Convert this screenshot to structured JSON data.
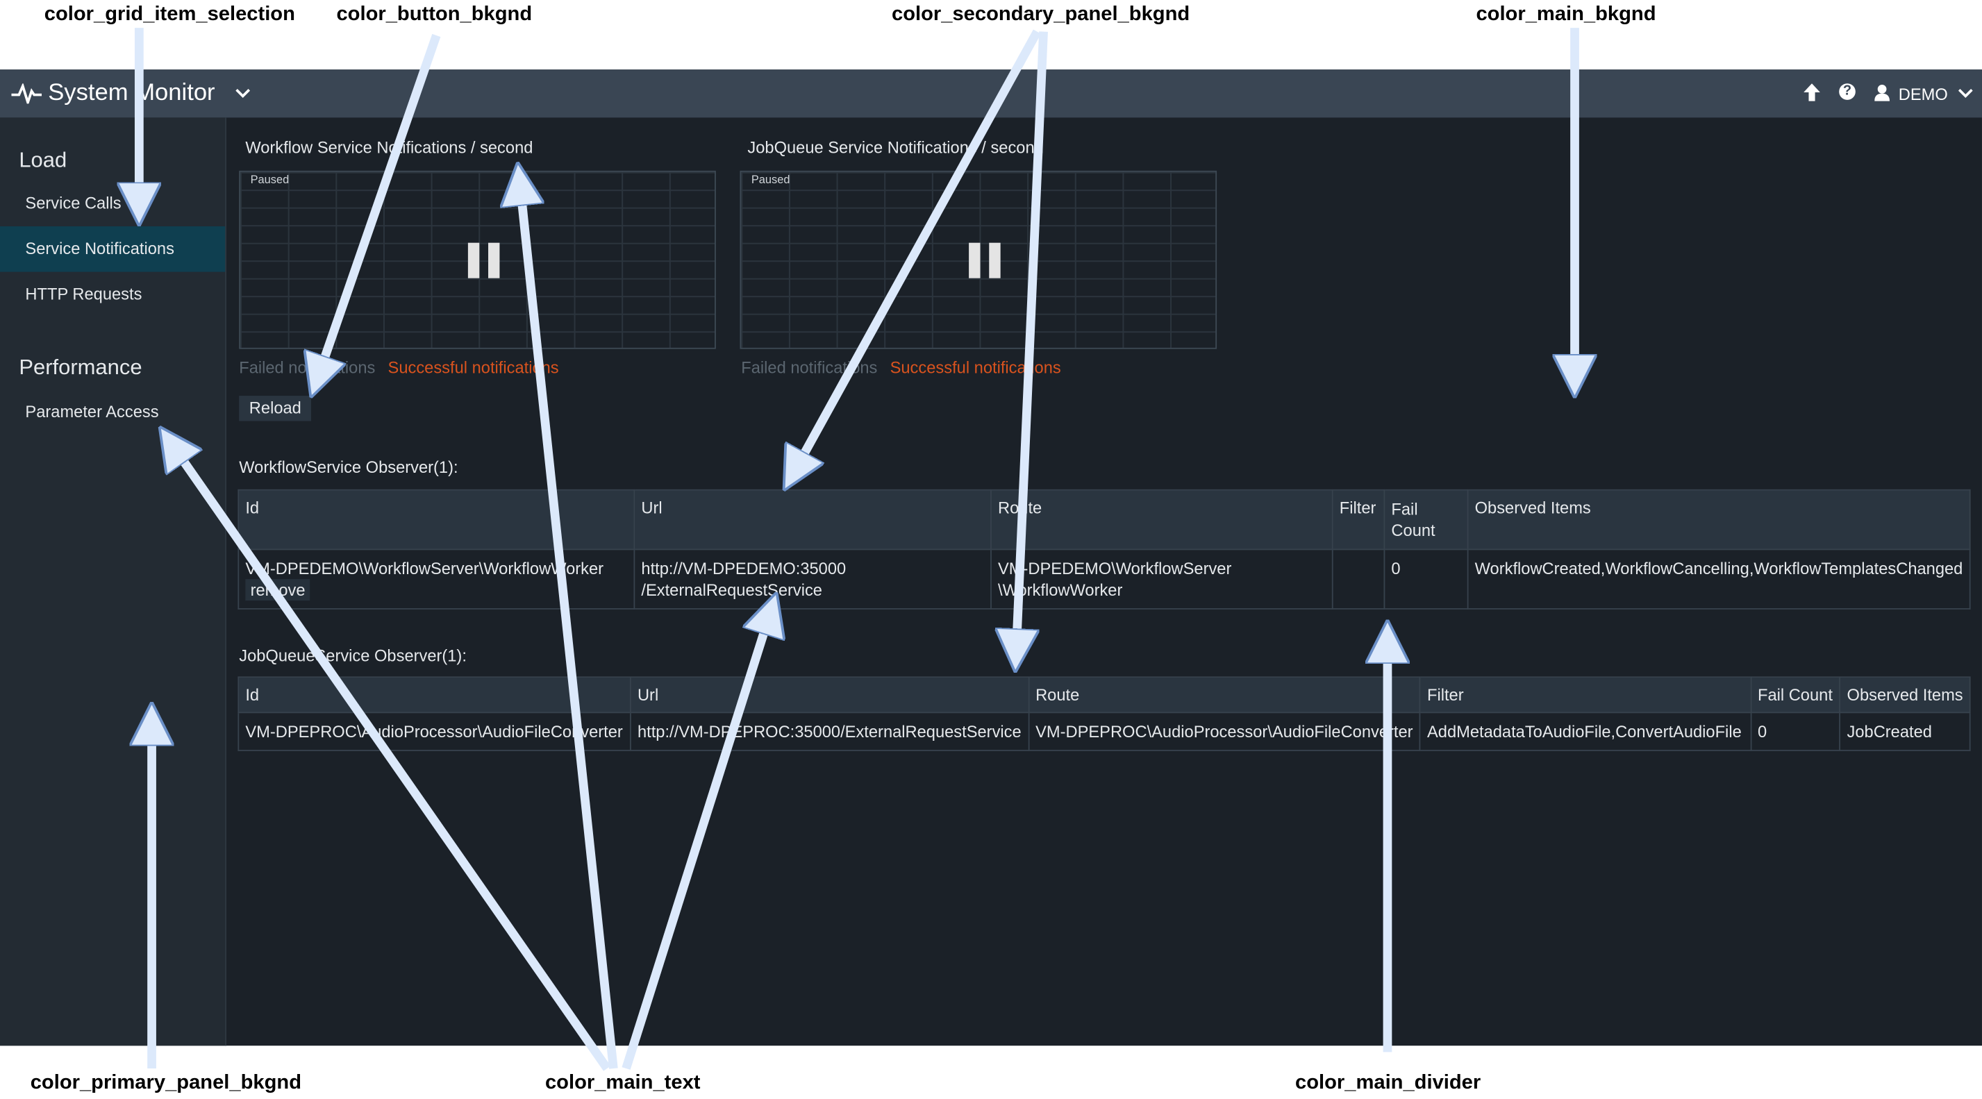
{
  "header": {
    "title": "System Monitor",
    "user": "DEMO",
    "icons": [
      "pulse-icon",
      "chevron-down-icon",
      "upload-arrow-icon",
      "help-icon",
      "user-icon",
      "chevron-down-icon"
    ]
  },
  "sidebar": {
    "sections": [
      {
        "title": "Load",
        "items": [
          {
            "label": "Service Calls"
          },
          {
            "label": "Service Notifications",
            "selected": true
          },
          {
            "label": "HTTP Requests"
          }
        ]
      },
      {
        "title": "Performance",
        "items": [
          {
            "label": "Parameter Access"
          }
        ]
      }
    ]
  },
  "charts": [
    {
      "title": "Workflow Service Notifications / second",
      "status": "Paused",
      "legend": [
        "Failed notifications",
        "Successful notifications"
      ]
    },
    {
      "title": "JobQueue Service Notifications / second",
      "status": "Paused",
      "legend": [
        "Failed notifications",
        "Successful notifications"
      ]
    }
  ],
  "reload_label": "Reload",
  "workflow_observer": {
    "title": "WorkflowService Observer(1):",
    "columns": [
      "Id",
      "Url",
      "Route",
      "Filter",
      "Fail Count",
      "Observed Items"
    ],
    "rows": [
      {
        "id": "VM-DPEDEMO\\WorkflowServer\\WorkflowWorker",
        "remove": "remove",
        "url1": "http://VM-DPEDEMO:35000",
        "url2": "/ExternalRequestService",
        "route1": "VM-DPEDEMO\\WorkflowServer",
        "route2": "\\WorkflowWorker",
        "filter": "",
        "fail_count": "0",
        "observed": "WorkflowCreated,WorkflowCancelling,WorkflowTemplatesChanged"
      }
    ]
  },
  "jobqueue_observer": {
    "title": "JobQueueService Observer(1):",
    "columns": [
      "Id",
      "Url",
      "Route",
      "Filter",
      "Fail Count",
      "Observed Items"
    ],
    "rows": [
      {
        "id": "VM-DPEPROC\\AudioProcessor\\AudioFileConverter",
        "url": "http://VM-DPEPROC:35000/ExternalRequestService",
        "route": "VM-DPEPROC\\AudioProcessor\\AudioFileConverter",
        "filter": "AddMetadataToAudioFile,ConvertAudioFile",
        "fail_count": "0",
        "observed": "JobCreated"
      }
    ]
  },
  "annotations": {
    "grid_item_selection": "color_grid_item_selection",
    "button_bkgnd": "color_button_bkgnd",
    "secondary_panel_bkgnd": "color_secondary_panel_bkgnd",
    "main_bkgnd": "color_main_bkgnd",
    "primary_panel_bkgnd": "color_primary_panel_bkgnd",
    "main_text": "color_main_text",
    "main_divider": "color_main_divider"
  },
  "colors": {
    "header": "#3a4654",
    "primary_panel": "#232b33",
    "main_bkgnd": "#1b2128",
    "selection": "#0f3f50",
    "secondary_panel": "#2a3540",
    "success": "#d9531e",
    "arrow": "#dce9fb"
  }
}
